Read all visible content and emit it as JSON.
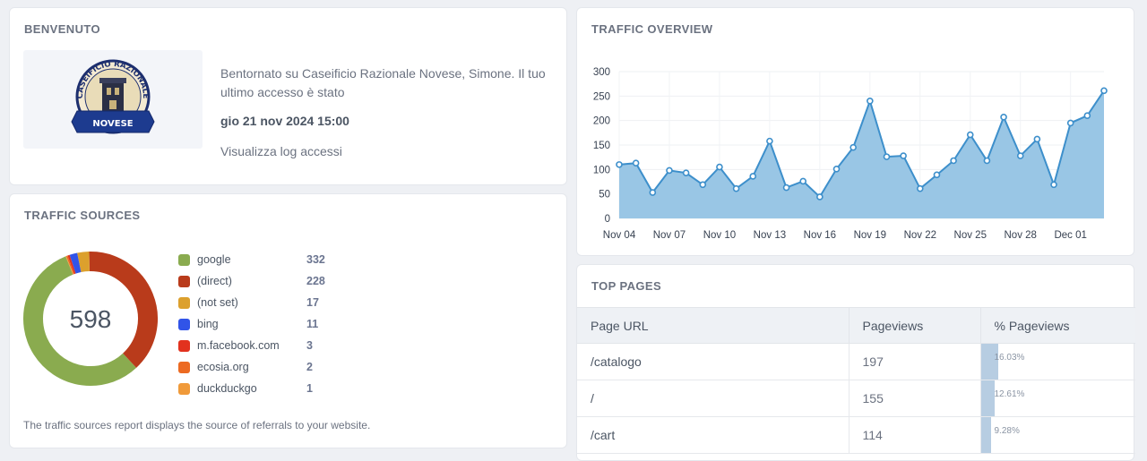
{
  "welcome": {
    "title": "BENVENUTO",
    "logo_text_top": "CASEIFICIO RAZIONALE",
    "logo_text_bottom": "NOVESE",
    "message": "Bentornato su Caseificio Razionale Novese, Simone. Il tuo ultimo accesso è stato",
    "last_login": "gio 21 nov 2024 15:00",
    "log_link": "Visualizza log accessi"
  },
  "sources": {
    "title": "TRAFFIC SOURCES",
    "total": "598",
    "items": [
      {
        "label": "google",
        "value": "332",
        "color": "#8aab4f"
      },
      {
        "label": "(direct)",
        "value": "228",
        "color": "#b93b1b"
      },
      {
        "label": "(not set)",
        "value": "17",
        "color": "#dca02d"
      },
      {
        "label": "bing",
        "value": "11",
        "color": "#3154e8"
      },
      {
        "label": "m.facebook.com",
        "value": "3",
        "color": "#e2321e"
      },
      {
        "label": "ecosia.org",
        "value": "2",
        "color": "#ec6a22"
      },
      {
        "label": "duckduckgo",
        "value": "1",
        "color": "#f09a3a"
      }
    ],
    "note": "The traffic sources report displays the source of referrals to your website."
  },
  "overview": {
    "title": "TRAFFIC OVERVIEW"
  },
  "chart_data": {
    "type": "area",
    "x": [
      "Nov 04",
      "Nov 05",
      "Nov 06",
      "Nov 07",
      "Nov 08",
      "Nov 09",
      "Nov 10",
      "Nov 11",
      "Nov 12",
      "Nov 13",
      "Nov 14",
      "Nov 15",
      "Nov 16",
      "Nov 17",
      "Nov 18",
      "Nov 19",
      "Nov 20",
      "Nov 21",
      "Nov 22",
      "Nov 23",
      "Nov 24",
      "Nov 25",
      "Nov 26",
      "Nov 27",
      "Nov 28",
      "Nov 29",
      "Nov 30",
      "Dec 01",
      "Dec 02",
      "Dec 03"
    ],
    "values": [
      110,
      113,
      53,
      98,
      93,
      69,
      105,
      61,
      86,
      158,
      63,
      76,
      44,
      101,
      145,
      240,
      126,
      128,
      61,
      89,
      118,
      171,
      118,
      207,
      128,
      162,
      69,
      195,
      210,
      261
    ],
    "tick_labels": [
      "Nov 04",
      "Nov 07",
      "Nov 10",
      "Nov 13",
      "Nov 16",
      "Nov 19",
      "Nov 22",
      "Nov 25",
      "Nov 28",
      "Dec 01"
    ],
    "yticks": [
      0,
      50,
      100,
      150,
      200,
      250,
      300
    ],
    "ylim": [
      0,
      300
    ],
    "line_color": "#3d8fcb",
    "fill_color": "#94c3e4",
    "grid": true
  },
  "top_pages": {
    "title": "TOP PAGES",
    "headers": [
      "Page URL",
      "Pageviews",
      "% Pageviews"
    ],
    "rows": [
      {
        "url": "/catalogo",
        "views": "197",
        "pct": "16.03%",
        "fraction": 0.1603
      },
      {
        "url": "/",
        "views": "155",
        "pct": "12.61%",
        "fraction": 0.1261
      },
      {
        "url": "/cart",
        "views": "114",
        "pct": "9.28%",
        "fraction": 0.0928
      }
    ]
  }
}
